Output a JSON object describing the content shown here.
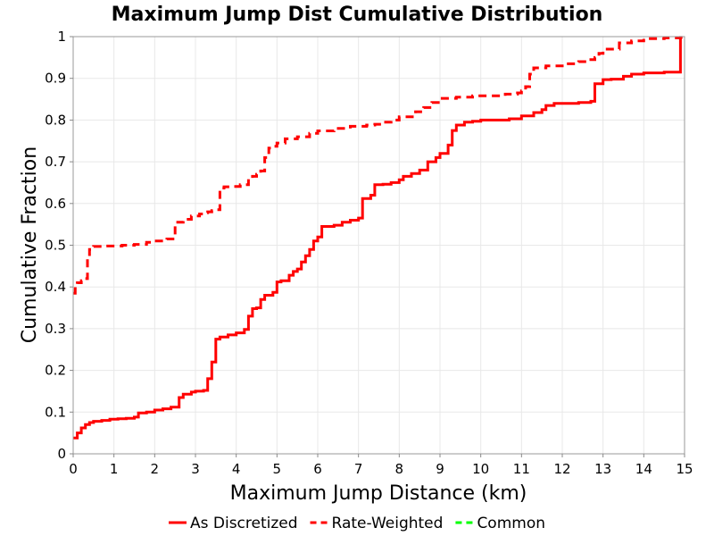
{
  "chart_data": {
    "type": "line",
    "title": "Maximum Jump Dist Cumulative Distribution",
    "xlabel": "Maximum Jump Distance (km)",
    "ylabel": "Cumulative Fraction",
    "xlim": [
      0,
      15
    ],
    "ylim": [
      0,
      1
    ],
    "xticks": [
      "0",
      "1",
      "2",
      "3",
      "4",
      "5",
      "6",
      "7",
      "8",
      "9",
      "10",
      "11",
      "12",
      "13",
      "14",
      "15"
    ],
    "yticks": [
      "0",
      "0.1",
      "0.2",
      "0.3",
      "0.4",
      "0.5",
      "0.6",
      "0.7",
      "0.8",
      "0.9",
      "1"
    ],
    "grid": true,
    "legend_position": "bottom",
    "series": [
      {
        "name": "As Discretized",
        "color": "#ff0000",
        "style": "solid",
        "x": [
          0,
          0.1,
          0.2,
          0.3,
          0.4,
          0.5,
          0.7,
          0.9,
          1.1,
          1.3,
          1.5,
          1.6,
          1.8,
          2.0,
          2.2,
          2.4,
          2.6,
          2.6,
          2.7,
          2.9,
          3.0,
          3.2,
          3.3,
          3.3,
          3.4,
          3.4,
          3.5,
          3.5,
          3.6,
          3.8,
          4.0,
          4.2,
          4.3,
          4.3,
          4.4,
          4.5,
          4.6,
          4.6,
          4.7,
          4.9,
          5.0,
          5.1,
          5.3,
          5.4,
          5.5,
          5.6,
          5.7,
          5.8,
          5.9,
          6.0,
          6.1,
          6.2,
          6.4,
          6.6,
          6.8,
          7.0,
          7.1,
          7.1,
          7.3,
          7.4,
          7.6,
          7.8,
          8.0,
          8.1,
          8.3,
          8.5,
          8.7,
          8.9,
          9.0,
          9.2,
          9.3,
          9.4,
          9.6,
          9.8,
          10.0,
          10.3,
          10.7,
          11.0,
          11.3,
          11.5,
          11.6,
          11.8,
          12.0,
          12.4,
          12.7,
          12.8,
          12.8,
          13.0,
          13.2,
          13.5,
          13.7,
          14.0,
          14.5,
          14.9,
          14.9
        ],
        "y": [
          0.038,
          0.05,
          0.062,
          0.07,
          0.075,
          0.078,
          0.08,
          0.083,
          0.084,
          0.085,
          0.088,
          0.098,
          0.1,
          0.105,
          0.108,
          0.112,
          0.114,
          0.135,
          0.143,
          0.148,
          0.15,
          0.152,
          0.165,
          0.18,
          0.185,
          0.22,
          0.225,
          0.275,
          0.28,
          0.285,
          0.29,
          0.298,
          0.3,
          0.33,
          0.348,
          0.35,
          0.352,
          0.37,
          0.38,
          0.387,
          0.412,
          0.415,
          0.428,
          0.437,
          0.443,
          0.46,
          0.475,
          0.49,
          0.51,
          0.52,
          0.545,
          0.545,
          0.548,
          0.555,
          0.56,
          0.565,
          0.57,
          0.612,
          0.62,
          0.645,
          0.646,
          0.65,
          0.657,
          0.665,
          0.672,
          0.68,
          0.7,
          0.71,
          0.72,
          0.74,
          0.775,
          0.788,
          0.795,
          0.797,
          0.8,
          0.8,
          0.803,
          0.81,
          0.818,
          0.825,
          0.835,
          0.84,
          0.84,
          0.842,
          0.845,
          0.875,
          0.887,
          0.897,
          0.898,
          0.905,
          0.91,
          0.913,
          0.915,
          0.916,
          1.0
        ]
      },
      {
        "name": "Rate-Weighted",
        "color": "#ff0000",
        "style": "dashed",
        "x": [
          0,
          0.05,
          0.1,
          0.2,
          0.3,
          0.35,
          0.4,
          0.5,
          0.8,
          1.2,
          1.5,
          1.8,
          2.0,
          2.3,
          2.5,
          2.5,
          2.7,
          2.9,
          3.1,
          3.2,
          3.3,
          3.4,
          3.5,
          3.6,
          3.6,
          3.7,
          3.9,
          4.1,
          4.3,
          4.4,
          4.5,
          4.6,
          4.7,
          4.8,
          4.9,
          5.0,
          5.2,
          5.5,
          5.8,
          6.0,
          6.4,
          6.8,
          7.2,
          7.4,
          7.6,
          7.8,
          8.0,
          8.4,
          8.6,
          8.8,
          9.0,
          9.4,
          9.8,
          10.2,
          10.6,
          10.9,
          11.0,
          11.1,
          11.2,
          11.3,
          11.6,
          12.0,
          12.4,
          12.7,
          12.8,
          12.9,
          13.0,
          13.4,
          13.7,
          14.0,
          14.5,
          14.9,
          15.0
        ],
        "y": [
          0.385,
          0.4,
          0.41,
          0.415,
          0.42,
          0.47,
          0.49,
          0.497,
          0.498,
          0.5,
          0.502,
          0.507,
          0.51,
          0.515,
          0.523,
          0.555,
          0.562,
          0.57,
          0.575,
          0.578,
          0.58,
          0.583,
          0.585,
          0.62,
          0.637,
          0.64,
          0.641,
          0.645,
          0.66,
          0.665,
          0.67,
          0.678,
          0.71,
          0.733,
          0.737,
          0.745,
          0.755,
          0.76,
          0.768,
          0.774,
          0.78,
          0.785,
          0.788,
          0.79,
          0.795,
          0.8,
          0.808,
          0.82,
          0.83,
          0.842,
          0.852,
          0.855,
          0.858,
          0.858,
          0.862,
          0.865,
          0.87,
          0.88,
          0.91,
          0.925,
          0.93,
          0.935,
          0.94,
          0.945,
          0.95,
          0.96,
          0.97,
          0.985,
          0.99,
          0.995,
          0.997,
          0.998,
          1.0
        ]
      },
      {
        "name": "Common",
        "color": "#00ff00",
        "style": "dashed",
        "x": [],
        "y": []
      }
    ]
  }
}
